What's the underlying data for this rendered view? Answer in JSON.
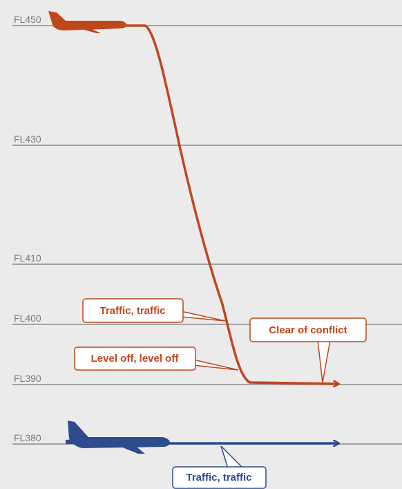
{
  "flight_levels": [
    "FL450",
    "FL430",
    "FL410",
    "FL400",
    "FL390",
    "FL380"
  ],
  "callouts": {
    "descent_traffic": "Traffic, traffic",
    "level_off": "Level off, level off",
    "clear": "Clear of conflict",
    "level_traffic": "Traffic, traffic"
  }
}
